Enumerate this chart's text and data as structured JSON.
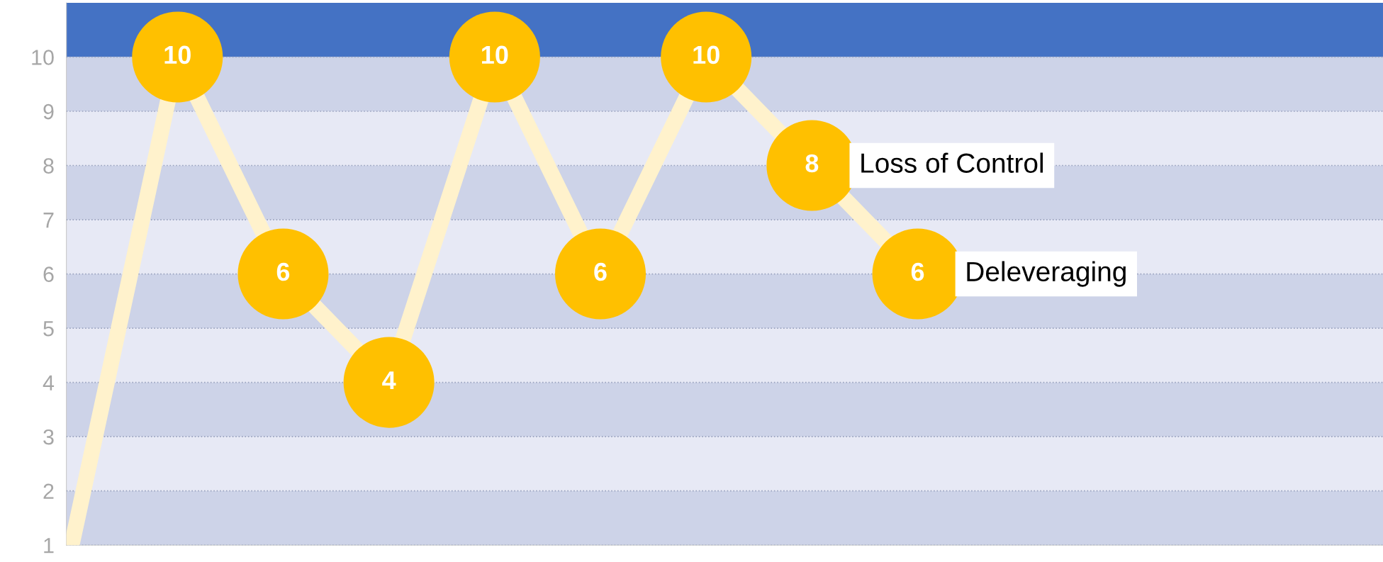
{
  "chart_data": {
    "type": "line",
    "categories": [
      null,
      null,
      null,
      null,
      null,
      null,
      null,
      null,
      null
    ],
    "series": [
      {
        "color": "#fff2cc",
        "values": [
          1,
          10,
          6,
          4,
          10,
          6,
          10,
          8,
          6
        ]
      },
      {
        "type": "scatter",
        "color": "#ffc000",
        "values": [
          null,
          10,
          6,
          4,
          10,
          6,
          10,
          8,
          6
        ],
        "value_labels": [
          null,
          "10",
          "6",
          "4",
          "10",
          "6",
          "10",
          "8",
          "6"
        ]
      }
    ],
    "ylim": [
      1,
      11
    ],
    "yticks": [
      1,
      2,
      3,
      4,
      5,
      6,
      7,
      8,
      9,
      10
    ],
    "tick_labels": "y",
    "grid": "y",
    "line_style": "solid",
    "bands": [
      {
        "axis": "y",
        "from": 10,
        "to": 11,
        "color": "#4472c4"
      },
      {
        "axis": "y",
        "from": 9,
        "to": 10,
        "color": "#cdd3e8"
      },
      {
        "axis": "y",
        "from": 8,
        "to": 9,
        "color": "#e7e9f5"
      },
      {
        "axis": "y",
        "from": 7,
        "to": 8,
        "color": "#cdd3e8"
      },
      {
        "axis": "y",
        "from": 6,
        "to": 7,
        "color": "#e7e9f5"
      },
      {
        "axis": "y",
        "from": 5,
        "to": 6,
        "color": "#cdd3e8"
      },
      {
        "axis": "y",
        "from": 4,
        "to": 5,
        "color": "#e7e9f5"
      },
      {
        "axis": "y",
        "from": 3,
        "to": 4,
        "color": "#cdd3e8"
      },
      {
        "axis": "y",
        "from": 2,
        "to": 3,
        "color": "#e7e9f5"
      },
      {
        "axis": "y",
        "from": 1,
        "to": 2,
        "color": "#cdd3e8"
      }
    ],
    "annotations": [
      {
        "text": "Loss of Control",
        "y": 8
      },
      {
        "text": "Deleveraging",
        "y": 6
      }
    ]
  }
}
